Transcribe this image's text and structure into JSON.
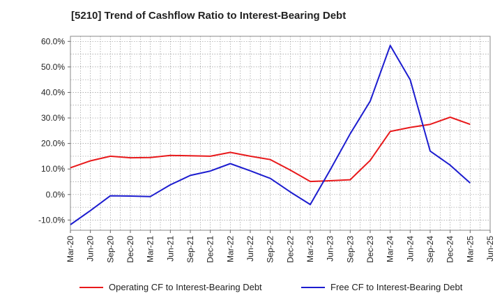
{
  "chart_data": {
    "type": "line",
    "title": "[5210]  Trend of Cashflow Ratio to Interest-Bearing Debt",
    "xlabel": "",
    "ylabel": "",
    "x": [
      "Mar-20",
      "Jun-20",
      "Sep-20",
      "Dec-20",
      "Mar-21",
      "Jun-21",
      "Sep-21",
      "Dec-21",
      "Mar-22",
      "Jun-22",
      "Sep-22",
      "Dec-22",
      "Mar-23",
      "Jun-23",
      "Sep-23",
      "Dec-23",
      "Mar-24",
      "Jun-24",
      "Sep-24",
      "Dec-24",
      "Mar-25",
      "Jun-25"
    ],
    "ylim": [
      -14,
      62
    ],
    "yticks": [
      -10,
      0,
      10,
      20,
      30,
      40,
      50,
      60
    ],
    "ytick_labels": [
      "-10.0%",
      "0.0%",
      "10.0%",
      "20.0%",
      "30.0%",
      "40.0%",
      "50.0%",
      "60.0%"
    ],
    "grid": true,
    "legend_position": "bottom",
    "series": [
      {
        "name": "Operating CF to Interest-Bearing Debt",
        "color": "#e8191b",
        "values": [
          10.5,
          13.2,
          15.0,
          14.4,
          14.5,
          15.3,
          15.2,
          15.0,
          16.5,
          15.0,
          13.7,
          9.6,
          5.1,
          5.4,
          5.8,
          13.4,
          24.7,
          26.3,
          27.5,
          30.3,
          27.5,
          null
        ]
      },
      {
        "name": "Free CF to Interest-Bearing Debt",
        "color": "#1c1ccf",
        "values": [
          -11.8,
          -6.3,
          -0.5,
          -0.6,
          -0.8,
          3.8,
          7.5,
          9.2,
          12.1,
          9.3,
          6.3,
          1.0,
          -3.9,
          9.7,
          23.8,
          36.6,
          58.4,
          45.0,
          17.0,
          11.5,
          4.5,
          null
        ]
      }
    ]
  }
}
